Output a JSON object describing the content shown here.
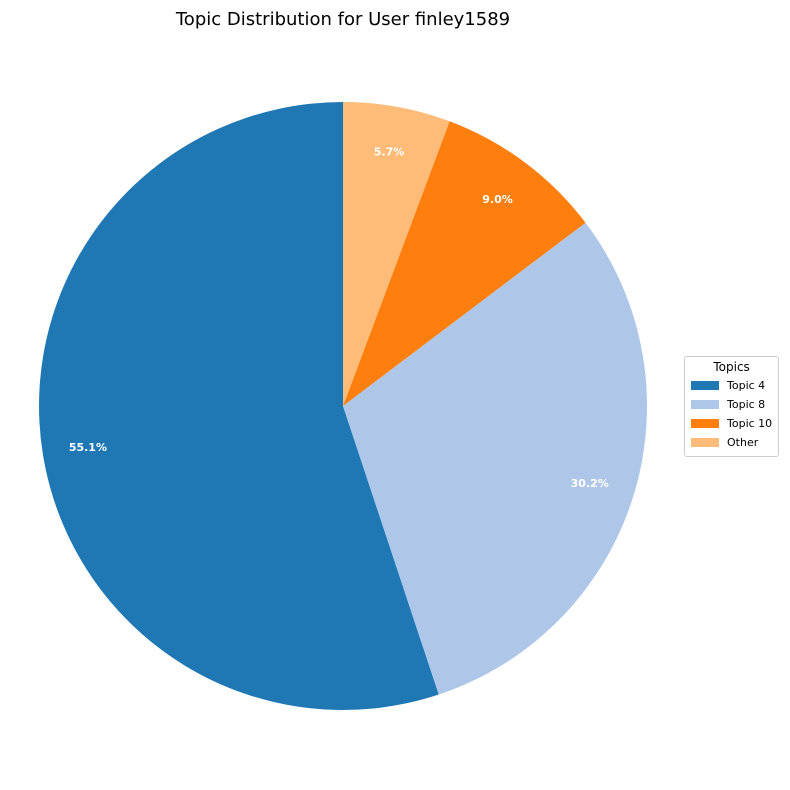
{
  "chart_data": {
    "type": "pie",
    "title": "Topic Distribution for User finley1589",
    "start_angle_deg": 90,
    "direction": "counterclockwise",
    "slices": [
      {
        "label": "Topic 4",
        "value": 55.1,
        "pct_label": "55.1%",
        "color": "#1f77b4"
      },
      {
        "label": "Topic 8",
        "value": 30.2,
        "pct_label": "30.2%",
        "color": "#aec7e8"
      },
      {
        "label": "Topic 10",
        "value": 9.0,
        "pct_label": "9.0%",
        "color": "#ff7f0e"
      },
      {
        "label": "Other",
        "value": 5.7,
        "pct_label": "5.7%",
        "color": "#ffbb78"
      }
    ],
    "legend": {
      "title": "Topics",
      "placement": "right"
    }
  }
}
